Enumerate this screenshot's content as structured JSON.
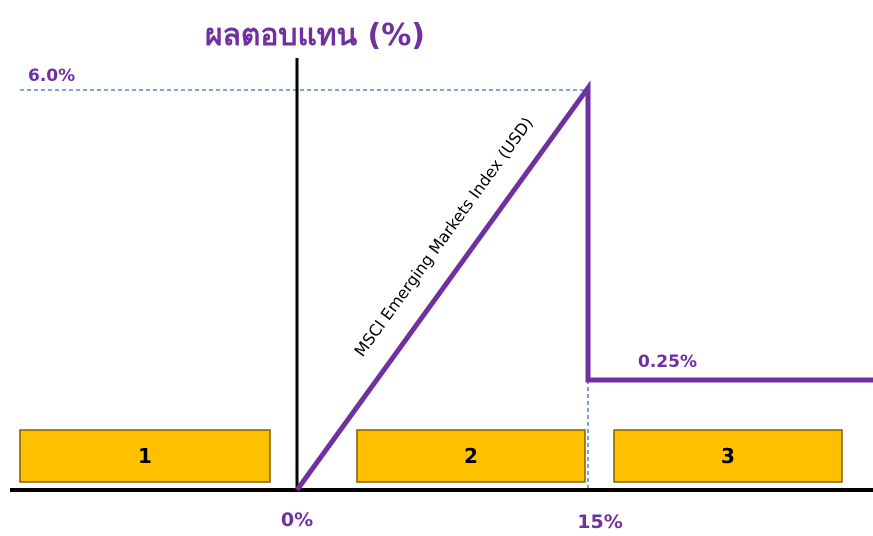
{
  "title": "ผลตอบแทน (%)",
  "y_labels": {
    "cap": "6.0%",
    "floor": "0.25%"
  },
  "x_labels": {
    "zero": "0%",
    "barrier": "15%"
  },
  "line_label": "MSCI Emerging Markets Index (USD)",
  "zones": [
    "1",
    "2",
    "3"
  ]
}
